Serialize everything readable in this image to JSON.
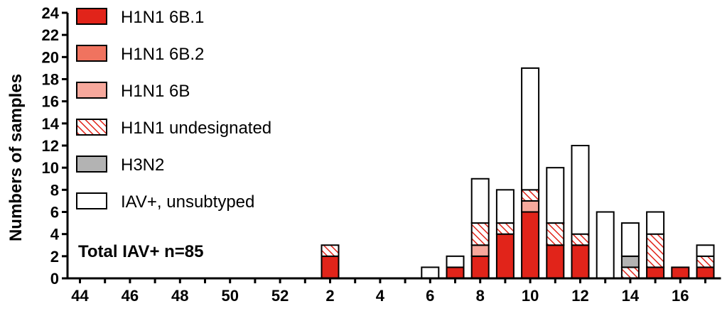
{
  "chart_data": {
    "type": "bar",
    "stacked": true,
    "ylabel": "Numbers of samples",
    "xlabel": "",
    "ylim": [
      0,
      24
    ],
    "y_ticks": [
      0,
      2,
      4,
      6,
      8,
      10,
      12,
      14,
      16,
      18,
      20,
      22,
      24
    ],
    "x_tick_labels": [
      "44",
      "46",
      "48",
      "50",
      "52",
      "2",
      "4",
      "6",
      "8",
      "10",
      "12",
      "14",
      "16"
    ],
    "categories": [
      "44",
      "45",
      "46",
      "47",
      "48",
      "49",
      "50",
      "51",
      "52",
      "1",
      "2",
      "3",
      "4",
      "5",
      "6",
      "7",
      "8",
      "9",
      "10",
      "11",
      "12",
      "13",
      "14",
      "15",
      "16",
      "17"
    ],
    "series": [
      {
        "name": "H1N1 6B.1",
        "color": "#e1241a",
        "pattern": "solid",
        "values": [
          0,
          0,
          0,
          0,
          0,
          0,
          0,
          0,
          0,
          0,
          2,
          0,
          0,
          0,
          0,
          1,
          2,
          4,
          6,
          3,
          3,
          0,
          0,
          1,
          1,
          1
        ]
      },
      {
        "name": "H1N1 6B.2",
        "color": "#f0735f",
        "pattern": "solid",
        "values": [
          0,
          0,
          0,
          0,
          0,
          0,
          0,
          0,
          0,
          0,
          0,
          0,
          0,
          0,
          0,
          0,
          0,
          0,
          0,
          0,
          0,
          0,
          0,
          0,
          0,
          0
        ]
      },
      {
        "name": "H1N1 6B",
        "color": "#f7a89c",
        "pattern": "solid",
        "values": [
          0,
          0,
          0,
          0,
          0,
          0,
          0,
          0,
          0,
          0,
          0,
          0,
          0,
          0,
          0,
          0,
          1,
          0,
          1,
          0,
          0,
          0,
          0,
          0,
          0,
          0
        ]
      },
      {
        "name": "H1N1 undesignated",
        "color": "#e1241a",
        "pattern": "hatched",
        "values": [
          0,
          0,
          0,
          0,
          0,
          0,
          0,
          0,
          0,
          0,
          1,
          0,
          0,
          0,
          0,
          0,
          2,
          1,
          1,
          2,
          1,
          0,
          1,
          3,
          0,
          1
        ]
      },
      {
        "name": "H3N2",
        "color": "#b3b3b3",
        "pattern": "solid",
        "values": [
          0,
          0,
          0,
          0,
          0,
          0,
          0,
          0,
          0,
          0,
          0,
          0,
          0,
          0,
          0,
          0,
          0,
          0,
          0,
          0,
          0,
          0,
          1,
          0,
          0,
          0
        ]
      },
      {
        "name": "IAV+, unsubtyped",
        "color": "#ffffff",
        "pattern": "solid",
        "values": [
          0,
          0,
          0,
          0,
          0,
          0,
          0,
          0,
          0,
          0,
          0,
          0,
          0,
          0,
          1,
          1,
          4,
          3,
          11,
          5,
          8,
          6,
          3,
          2,
          0,
          1
        ]
      }
    ],
    "annotation": "Total IAV+ n=85",
    "legend_position": "top-left",
    "grid": false
  }
}
